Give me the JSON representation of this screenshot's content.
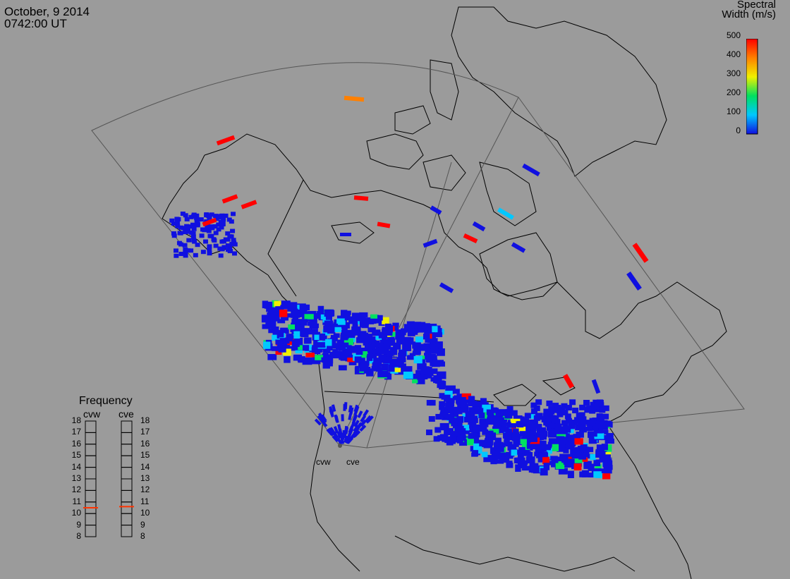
{
  "header": {
    "date": "October, 9 2014",
    "time": "0742:00 UT"
  },
  "colorbar": {
    "title_line1": "Spectral",
    "title_line2": "Width (m/s)",
    "ticks": [
      "500",
      "400",
      "300",
      "200",
      "100",
      "0"
    ],
    "colors": [
      "#1010e0",
      "#00c8ff",
      "#00e060",
      "#f0f000",
      "#ff8000",
      "#ff0000"
    ]
  },
  "frequency": {
    "title": "Frequency",
    "radars": [
      "cvw",
      "cve"
    ],
    "ticks": [
      "18",
      "17",
      "16",
      "15",
      "14",
      "13",
      "12",
      "11",
      "10",
      "9",
      "8"
    ],
    "cvw_value": 10.5,
    "cve_value": 10.6
  },
  "sites": [
    "cvw",
    "cve"
  ]
}
